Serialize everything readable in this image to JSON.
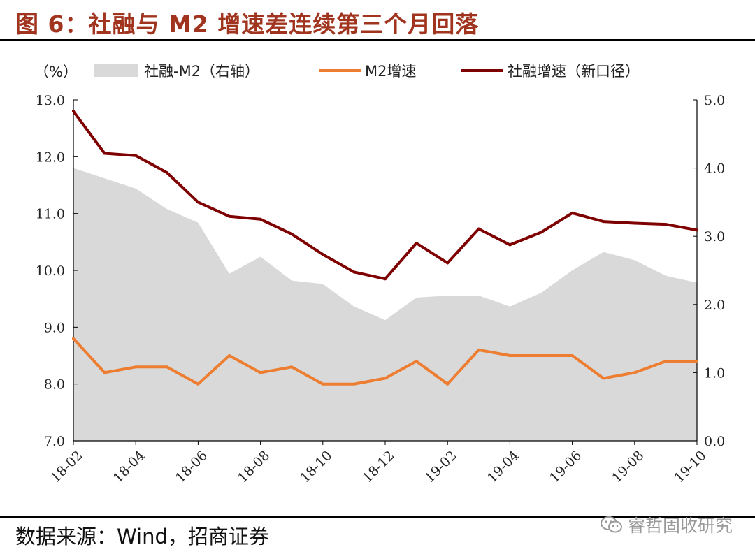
{
  "title": "图 6：社融与 M2 增速差连续第三个月回落",
  "source": "数据来源：Wind，招商证券",
  "watermark": "睿哲固收研究",
  "watermark_icon": "wechat-icon",
  "chart_data": {
    "type": "line",
    "unit_label": "（%）",
    "categories": [
      "18-02",
      "18-03",
      "18-04",
      "18-05",
      "18-06",
      "18-07",
      "18-08",
      "18-09",
      "18-10",
      "18-11",
      "18-12",
      "19-01",
      "19-02",
      "19-03",
      "19-04",
      "19-05",
      "19-06",
      "19-07",
      "19-08",
      "19-09",
      "19-10"
    ],
    "x_tick_labels": [
      "18-02",
      "18-04",
      "18-06",
      "18-08",
      "18-10",
      "18-12",
      "19-02",
      "19-04",
      "19-06",
      "19-08",
      "19-10"
    ],
    "left_axis": {
      "min": 7.0,
      "max": 13.0,
      "ticks": [
        "7.0",
        "8.0",
        "9.0",
        "10.0",
        "11.0",
        "12.0",
        "13.0"
      ]
    },
    "right_axis": {
      "min": 0.0,
      "max": 5.0,
      "ticks": [
        "0.0",
        "1.0",
        "2.0",
        "3.0",
        "4.0",
        "5.0"
      ]
    },
    "legend_placement": "top",
    "series": [
      {
        "name": "社融-M2（右轴）",
        "type": "area",
        "axis": "right",
        "color": "#d9d9d9",
        "values": [
          4.0,
          3.85,
          3.7,
          3.4,
          3.2,
          2.45,
          2.7,
          2.35,
          2.3,
          1.97,
          1.77,
          2.1,
          2.13,
          2.13,
          1.97,
          2.17,
          2.5,
          2.77,
          2.65,
          2.42,
          2.32
        ]
      },
      {
        "name": "M2增速",
        "type": "line",
        "axis": "left",
        "color": "#ed7d31",
        "values": [
          8.8,
          8.2,
          8.3,
          8.3,
          8.0,
          8.5,
          8.2,
          8.3,
          8.0,
          8.0,
          8.1,
          8.4,
          8.0,
          8.6,
          8.5,
          8.5,
          8.5,
          8.1,
          8.2,
          8.4,
          8.4
        ]
      },
      {
        "name": "社融增速（新口径）",
        "type": "line",
        "axis": "left",
        "color": "#7f0000",
        "values": [
          12.8,
          12.06,
          12.02,
          11.72,
          11.2,
          10.95,
          10.9,
          10.64,
          10.28,
          9.97,
          9.85,
          10.48,
          10.13,
          10.73,
          10.45,
          10.67,
          11.01,
          10.86,
          10.83,
          10.81,
          10.71
        ]
      }
    ]
  }
}
